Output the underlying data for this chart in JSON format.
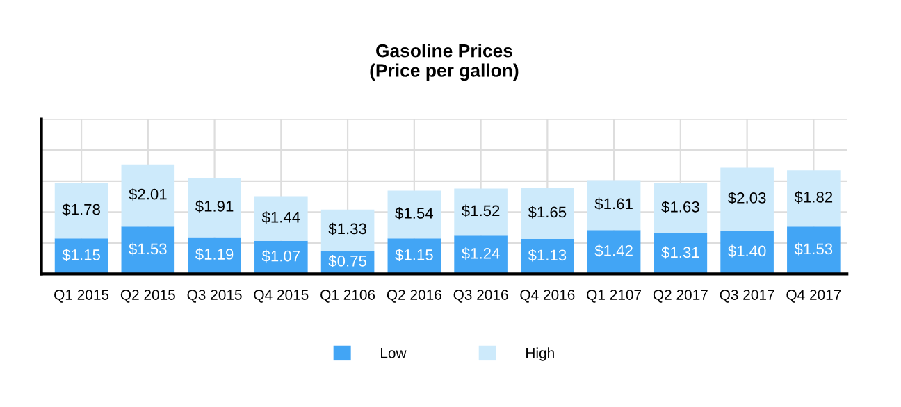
{
  "chart_data": {
    "type": "bar",
    "title": "Gasoline Prices\n(Price per gallon)",
    "categories": [
      "Q1 2015",
      "Q2 2015",
      "Q3 2015",
      "Q4 2015",
      "Q1 2106",
      "Q2 2016",
      "Q3 2016",
      "Q4 2016",
      "Q1 2107",
      "Q2 2017",
      "Q3 2017",
      "Q4 2017"
    ],
    "stacked": true,
    "series": [
      {
        "name": "Low",
        "color": "#42a5f5",
        "values": [
          1.15,
          1.53,
          1.19,
          1.07,
          0.75,
          1.15,
          1.24,
          1.13,
          1.42,
          1.31,
          1.4,
          1.53
        ],
        "value_labels": [
          "$1.15",
          "$1.53",
          "$1.19",
          "$1.07",
          "$0.75",
          "$1.15",
          "$1.24",
          "$1.13",
          "$1.42",
          "$1.31",
          "$1.40",
          "$1.53"
        ]
      },
      {
        "name": "High",
        "color": "#cdeafb",
        "values": [
          1.78,
          2.01,
          1.91,
          1.44,
          1.33,
          1.54,
          1.52,
          1.65,
          1.61,
          1.63,
          2.03,
          1.82
        ],
        "value_labels": [
          "$1.78",
          "$2.01",
          "$1.91",
          "$1.44",
          "$1.33",
          "$1.54",
          "$1.52",
          "$1.65",
          "$1.61",
          "$1.63",
          "$2.03",
          "$1.82"
        ]
      }
    ],
    "ylim": [
      0,
      5
    ],
    "yticks": [
      {
        "value": 0,
        "label": null
      },
      {
        "value": 1,
        "label": null
      },
      {
        "value": 2,
        "label": null
      },
      {
        "value": 3,
        "label": null
      },
      {
        "value": 4,
        "label": null
      },
      {
        "value": 5,
        "label": null
      }
    ],
    "tick_labels": "x",
    "grid": true,
    "legend": "bottom"
  }
}
